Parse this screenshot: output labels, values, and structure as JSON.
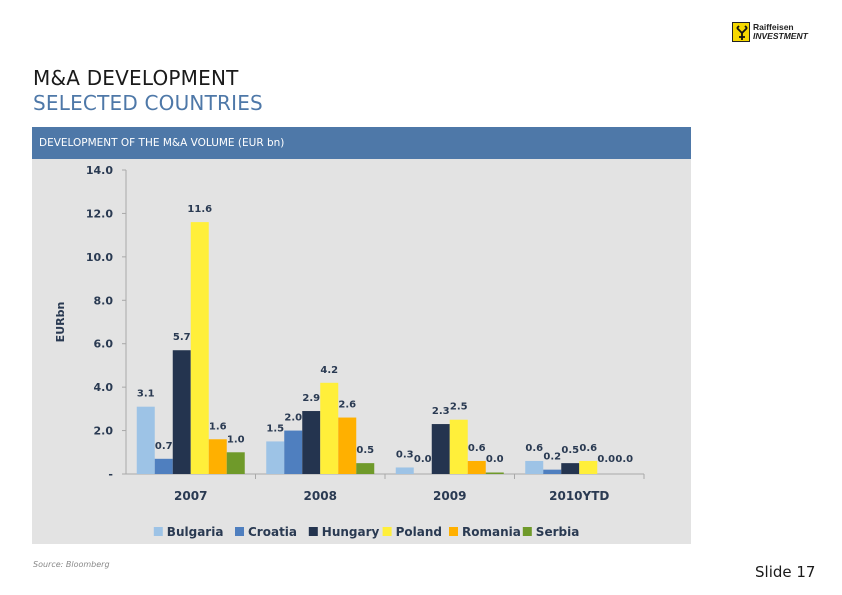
{
  "brand": {
    "line1": "Raiffeisen",
    "line2": "INVESTMENT",
    "color": "#f5d800"
  },
  "title": {
    "main": "M&A DEVELOPMENT",
    "sub": "SELECTED COUNTRIES"
  },
  "panel": {
    "header": "DEVELOPMENT OF THE M&A VOLUME (EUR bn)"
  },
  "footer": {
    "source": "Source: Bloomberg",
    "slide": "Slide 17"
  },
  "chart_data": {
    "type": "bar",
    "ylabel": "EURbn",
    "ylim": [
      0,
      14
    ],
    "yticks": [
      {
        "value": 0,
        "label": "-"
      },
      {
        "value": 2,
        "label": "2.0"
      },
      {
        "value": 4,
        "label": "4.0"
      },
      {
        "value": 6,
        "label": "6.0"
      },
      {
        "value": 8,
        "label": "8.0"
      },
      {
        "value": 10,
        "label": "10.0"
      },
      {
        "value": 12,
        "label": "12.0"
      },
      {
        "value": 14,
        "label": "14.0"
      }
    ],
    "grid": false,
    "legend": "bottom",
    "categories": [
      "2007",
      "2008",
      "2009",
      "2010YTD"
    ],
    "series": [
      {
        "name": "Bulgaria",
        "color": "#9dc3e6",
        "values": [
          3.1,
          1.5,
          0.3,
          0.6
        ]
      },
      {
        "name": "Croatia",
        "color": "#4f7fbf",
        "values": [
          0.7,
          2.0,
          0.0,
          0.2
        ]
      },
      {
        "name": "Hungary",
        "color": "#24344f",
        "values": [
          5.7,
          2.9,
          2.3,
          0.5
        ]
      },
      {
        "name": "Poland",
        "color": "#ffef3a",
        "values": [
          11.6,
          4.2,
          2.5,
          0.6
        ]
      },
      {
        "name": "Romania",
        "color": "#ffb000",
        "values": [
          1.6,
          2.6,
          0.6,
          0.0
        ]
      },
      {
        "name": "Serbia",
        "color": "#6f9a2a",
        "values": [
          1.0,
          0.5,
          0.0,
          0.0
        ]
      }
    ],
    "value_labels": [
      [
        "3.1",
        "1.5",
        "0.3",
        "0.6"
      ],
      [
        "0.7",
        "2.0",
        "0.0",
        "0.2"
      ],
      [
        "5.7",
        "2.9",
        "2.3",
        "0.5"
      ],
      [
        "11.6",
        "4.2",
        "2.5",
        "0.6"
      ],
      [
        "1.6",
        "2.6",
        "0.6",
        "0.0"
      ],
      [
        "1.0",
        "0.5",
        "0.0",
        "0.0"
      ]
    ]
  }
}
